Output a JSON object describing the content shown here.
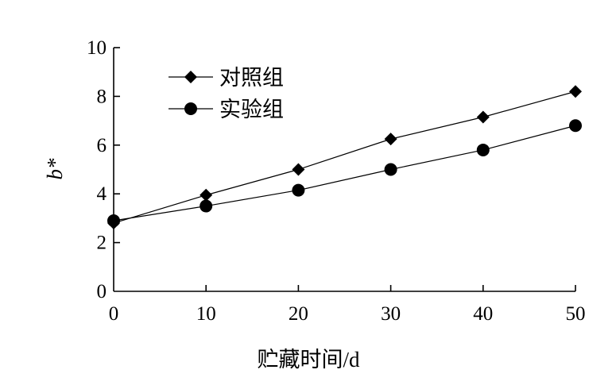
{
  "chart_data": {
    "type": "line",
    "title": "",
    "xlabel": "贮藏时间/d",
    "ylabel": "b*",
    "x": [
      0,
      10,
      20,
      30,
      40,
      50
    ],
    "xlim": [
      0,
      50
    ],
    "ylim": [
      0,
      10
    ],
    "x_ticks": [
      "0",
      "10",
      "20",
      "30",
      "40",
      "50"
    ],
    "y_ticks": [
      "0",
      "2",
      "4",
      "6",
      "8",
      "10"
    ],
    "grid": false,
    "legend_position": "top-left",
    "series": [
      {
        "name": "对照组",
        "marker": "diamond",
        "color": "#000000",
        "values": [
          2.8,
          3.95,
          5.0,
          6.25,
          7.15,
          8.2
        ]
      },
      {
        "name": "实验组",
        "marker": "circle",
        "color": "#000000",
        "values": [
          2.9,
          3.5,
          4.15,
          5.0,
          5.8,
          6.8
        ]
      }
    ]
  }
}
